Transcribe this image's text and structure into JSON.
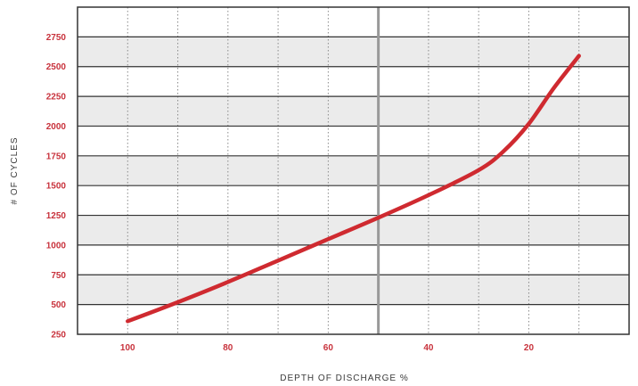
{
  "chart_data": {
    "type": "line",
    "title": "",
    "xlabel": "DEPTH OF DISCHARGE %",
    "ylabel": "# OF CYCLES",
    "x_reversed": true,
    "xlim": [
      110,
      0
    ],
    "ylim": [
      250,
      3000
    ],
    "x_ticks": [
      100,
      80,
      60,
      40,
      20
    ],
    "y_ticks": [
      250,
      500,
      750,
      1000,
      1250,
      1500,
      1750,
      2000,
      2250,
      2500,
      2750
    ],
    "grid": true,
    "legend": "none",
    "colors": {
      "line": "#cf2a30",
      "tick_labels": "#c8323c",
      "band": "#ebebeb",
      "gridline": "#333333",
      "midline": "#999999"
    },
    "series": [
      {
        "x": [
          100,
          90,
          80,
          70,
          60,
          50,
          40,
          30,
          25,
          20,
          15,
          10
        ],
        "y": [
          360,
          520,
          690,
          870,
          1050,
          1230,
          1420,
          1630,
          1790,
          2020,
          2320,
          2590
        ]
      }
    ]
  }
}
